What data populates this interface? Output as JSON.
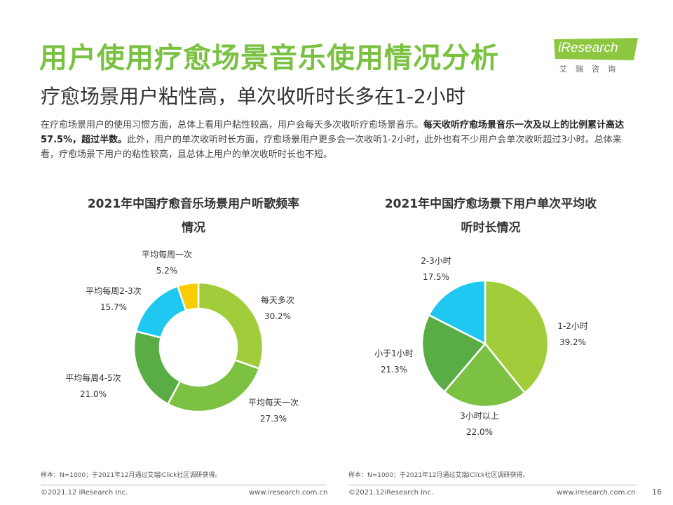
{
  "title": "用户使用疗愈场景音乐使用情况分析",
  "subtitle": "疗愈场景用户粘性高，单次收听时长多在1-2小时",
  "body": {
    "part1": "在疗愈场景用户的使用习惯方面，总体上看用户粘性较高，用户会每天多次收听疗愈场景音乐。",
    "bold": "每天收听疗愈场景音乐一次及以上的比例累计高达57.5%，超过半数。",
    "part2": "此外，用户的单次收听时长方面，疗愈场景用户更多会一次收听1-2小时，此外也有不少用户会单次收听超过3小时。总体来看，疗愈场景下用户的粘性较高，且总体上用户的单次收听时长也不短。"
  },
  "logo": {
    "text": "iResearch",
    "sub": "艾瑞咨询"
  },
  "chart_data": [
    {
      "type": "pie",
      "style": "donut",
      "title_line1": "2021年中国疗愈音乐场景用户听歌频率",
      "title_line2": "情况",
      "unit": "%",
      "slices": [
        {
          "label": "每天多次",
          "value": 30.2,
          "value_text": "30.2%",
          "color": "#a2cd3a"
        },
        {
          "label": "平均每天一次",
          "value": 27.3,
          "value_text": "27.3%",
          "color": "#7dc142"
        },
        {
          "label": "平均每周4-5次",
          "value": 21.0,
          "value_text": "21.0%",
          "color": "#5aac45"
        },
        {
          "label": "平均每周2-3次",
          "value": 15.7,
          "value_text": "15.7%",
          "color": "#1ec8f0"
        },
        {
          "label": "平均每周一次",
          "value": 5.2,
          "value_text": "5.2%",
          "color": "#fbcd00"
        }
      ],
      "note": "样本：N=1000；于2021年12月通过艾瑞iClick社区调研获得。"
    },
    {
      "type": "pie",
      "style": "pie",
      "title_line1": "2021年中国疗愈场景下用户单次平均收",
      "title_line2": "听时长情况",
      "unit": "%",
      "slices": [
        {
          "label": "1-2小时",
          "value": 39.2,
          "value_text": "39.2%",
          "color": "#a2cd3a"
        },
        {
          "label": "3小时以上",
          "value": 22.0,
          "value_text": "22.0%",
          "color": "#7dc142"
        },
        {
          "label": "小于1小时",
          "value": 21.3,
          "value_text": "21.3%",
          "color": "#5aac45"
        },
        {
          "label": "2-3小时",
          "value": 17.5,
          "value_text": "17.5%",
          "color": "#1ec8f0"
        }
      ],
      "note": "样本：N=1000；于2021年12月通过艾瑞iClick社区调研获得。"
    }
  ],
  "footer": {
    "left_copyright": "©2021.12 iResearch Inc.",
    "left_url": "www.iresearch.com.cn",
    "right_copyright": "©2021.12iResearch Inc.",
    "right_url": "www.iresearch.com.cn",
    "page": "16"
  },
  "colors": {
    "accent": "#7ac142",
    "logo_bg": "#8dc63f"
  }
}
